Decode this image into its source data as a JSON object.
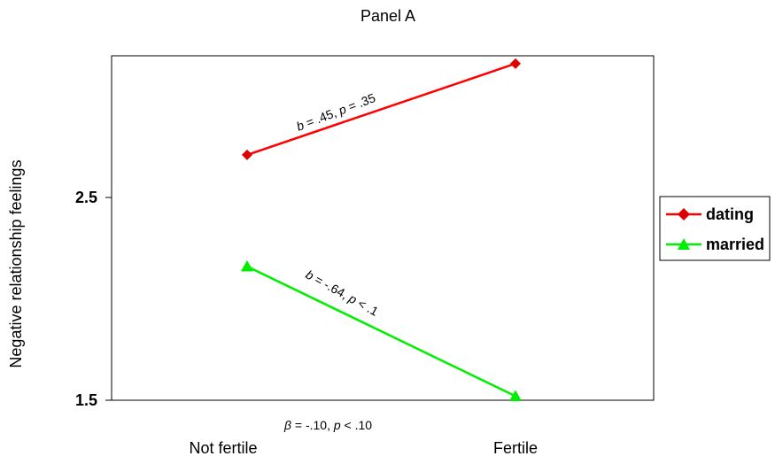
{
  "chart_data": {
    "type": "line",
    "title": "Panel A",
    "xlabel": "",
    "ylabel": "Negative relationship feelings",
    "categories": [
      "Not fertile",
      "Fertile"
    ],
    "yticks": [
      "2.5",
      "1.5"
    ],
    "ylim": [
      1.5,
      2.9
    ],
    "grid": false,
    "legend_position": "right",
    "series": [
      {
        "name": "dating",
        "values": [
          2.71,
          3.16
        ],
        "color": "#ff0000",
        "marker": "diamond"
      },
      {
        "name": "married",
        "values": [
          2.16,
          1.52
        ],
        "color": "#00ee00",
        "marker": "triangle"
      }
    ],
    "annotations": {
      "dating_b": "b",
      "dating_rest": " = .45, ",
      "dating_p": "p",
      "dating_rest2": " = .35",
      "married_b": "b",
      "married_rest": " = -.64, ",
      "married_p": "p",
      "married_rest2": " < .1",
      "beta_sym": "β",
      "beta_rest": " = -.10, ",
      "beta_p": "p",
      "beta_rest2": " < .10"
    }
  }
}
